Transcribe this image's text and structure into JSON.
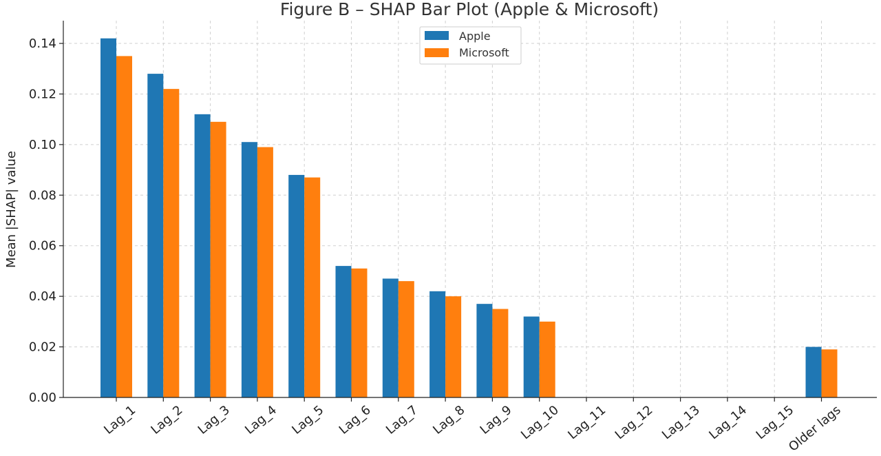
{
  "chart_data": {
    "type": "bar",
    "title": "Figure B – SHAP Bar Plot (Apple & Microsoft)",
    "xlabel": "",
    "ylabel": "Mean |SHAP| value",
    "categories": [
      "Lag_1",
      "Lag_2",
      "Lag_3",
      "Lag_4",
      "Lag_5",
      "Lag_6",
      "Lag_7",
      "Lag_8",
      "Lag_9",
      "Lag_10",
      "Lag_11",
      "Lag_12",
      "Lag_13",
      "Lag_14",
      "Lag_15",
      "Older lags"
    ],
    "series": [
      {
        "name": "Apple",
        "color": "#1f77b4",
        "values": [
          0.142,
          0.128,
          0.112,
          0.101,
          0.088,
          0.052,
          0.047,
          0.042,
          0.037,
          0.032,
          0,
          0,
          0,
          0,
          0,
          0.02
        ]
      },
      {
        "name": "Microsoft",
        "color": "#ff7f0e",
        "values": [
          0.135,
          0.122,
          0.109,
          0.099,
          0.087,
          0.051,
          0.046,
          0.04,
          0.035,
          0.03,
          0,
          0,
          0,
          0,
          0,
          0.019
        ]
      }
    ],
    "ylim": [
      0,
      0.149
    ],
    "yticks": [
      "0.00",
      "0.02",
      "0.04",
      "0.06",
      "0.08",
      "0.10",
      "0.12",
      "0.14"
    ],
    "grid": true,
    "legend_position": "top-center"
  }
}
